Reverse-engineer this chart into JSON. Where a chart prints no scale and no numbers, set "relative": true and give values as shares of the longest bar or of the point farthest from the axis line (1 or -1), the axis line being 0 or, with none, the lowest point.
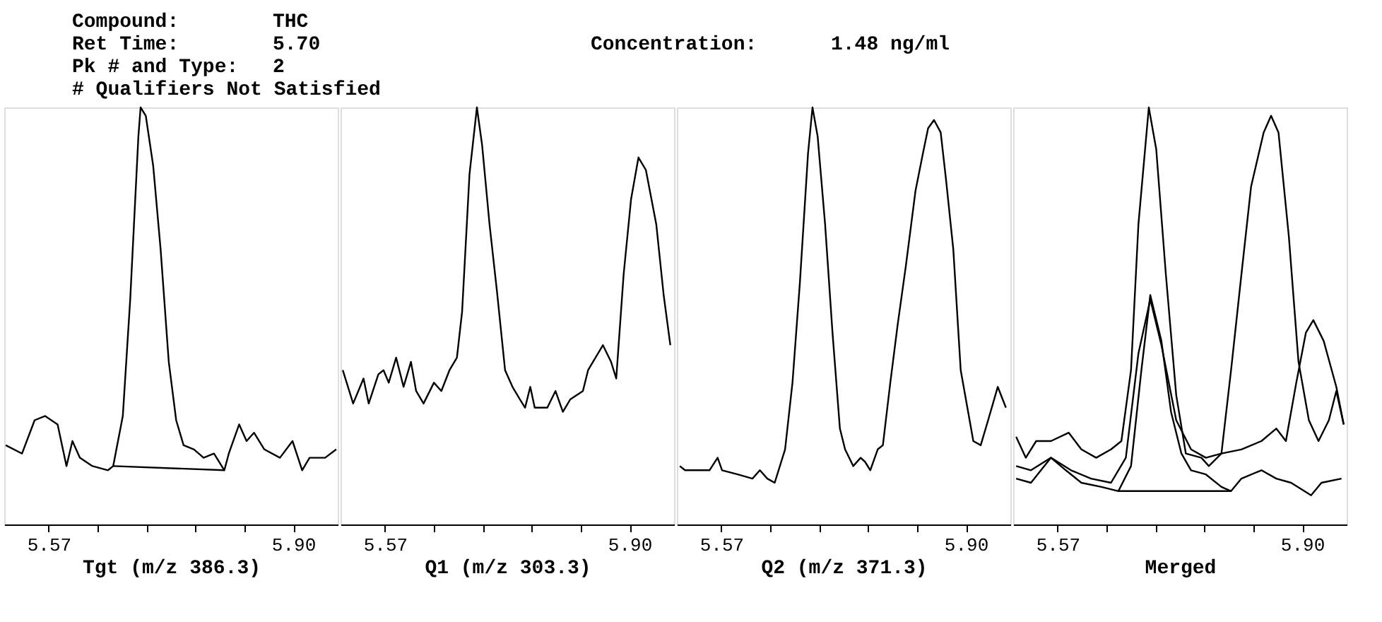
{
  "chart_data": [
    {
      "type": "line",
      "relative": true,
      "xlabel": "Tgt (m/z 386.3)",
      "xlim": [
        5.51,
        5.96
      ],
      "xticks": [
        {
          "value": 5.57,
          "label": "5.57"
        },
        {
          "value": 5.636,
          "label": null
        },
        {
          "value": 5.702,
          "label": null
        },
        {
          "value": 5.768,
          "label": null
        },
        {
          "value": 5.834,
          "label": null
        },
        {
          "value": 5.9,
          "label": "5.90"
        }
      ],
      "grid": false,
      "marker": "none",
      "line_style": "solid",
      "annotations": [
        "Compound:",
        "THC",
        "Ret Time:",
        "5.70",
        "Pk # and Type:",
        "2",
        "# Qualifiers Not Satisfied",
        "Concentration:",
        "1.48 ng/ml"
      ],
      "series": [
        {
          "color": "#000000",
          "x": [
            5.512,
            5.534,
            5.551,
            5.565,
            5.582,
            5.594,
            5.602,
            5.612,
            5.629,
            5.65,
            5.657,
            5.67,
            5.68,
            5.691,
            5.694,
            5.701,
            5.711,
            5.721,
            5.732,
            5.742,
            5.752,
            5.766,
            5.779,
            5.793,
            5.807,
            5.813,
            5.827,
            5.837,
            5.847,
            5.861,
            5.882,
            5.899,
            5.912,
            5.922,
            5.943,
            5.958
          ],
          "values": [
            0.19,
            0.17,
            0.25,
            0.26,
            0.24,
            0.14,
            0.2,
            0.16,
            0.14,
            0.13,
            0.14,
            0.26,
            0.54,
            0.93,
            1.0,
            0.98,
            0.86,
            0.66,
            0.39,
            0.25,
            0.19,
            0.18,
            0.16,
            0.17,
            0.13,
            0.17,
            0.24,
            0.2,
            0.22,
            0.18,
            0.16,
            0.2,
            0.13,
            0.16,
            0.16,
            0.18
          ]
        },
        {
          "color": "#000000",
          "x": [
            5.657,
            5.807
          ],
          "values": [
            0.14,
            0.13
          ]
        }
      ]
    },
    {
      "type": "line",
      "relative": true,
      "xlabel": "Q1 (m/z 303.3)",
      "xlim": [
        5.51,
        5.96
      ],
      "xticks": [
        {
          "value": 5.57,
          "label": "5.57"
        },
        {
          "value": 5.636,
          "label": null
        },
        {
          "value": 5.702,
          "label": null
        },
        {
          "value": 5.768,
          "label": null
        },
        {
          "value": 5.834,
          "label": null
        },
        {
          "value": 5.9,
          "label": "5.90"
        }
      ],
      "grid": false,
      "marker": "none",
      "line_style": "solid",
      "series": [
        {
          "color": "#000000",
          "x": [
            5.513,
            5.527,
            5.541,
            5.548,
            5.561,
            5.568,
            5.575,
            5.585,
            5.595,
            5.605,
            5.612,
            5.622,
            5.636,
            5.646,
            5.657,
            5.667,
            5.674,
            5.684,
            5.694,
            5.701,
            5.711,
            5.721,
            5.732,
            5.742,
            5.752,
            5.759,
            5.766,
            5.772,
            5.789,
            5.8,
            5.81,
            5.82,
            5.837,
            5.844,
            5.854,
            5.864,
            5.875,
            5.882,
            5.892,
            5.902,
            5.912,
            5.922,
            5.936,
            5.946,
            5.955
          ],
          "values": [
            0.37,
            0.29,
            0.35,
            0.29,
            0.36,
            0.37,
            0.34,
            0.4,
            0.33,
            0.39,
            0.32,
            0.29,
            0.34,
            0.32,
            0.37,
            0.4,
            0.51,
            0.84,
            1.0,
            0.91,
            0.72,
            0.56,
            0.37,
            0.33,
            0.3,
            0.28,
            0.33,
            0.28,
            0.28,
            0.32,
            0.27,
            0.3,
            0.32,
            0.37,
            0.4,
            0.43,
            0.39,
            0.35,
            0.6,
            0.78,
            0.88,
            0.85,
            0.72,
            0.55,
            0.43
          ]
        }
      ]
    },
    {
      "type": "line",
      "relative": true,
      "xlabel": "Q2 (m/z 371.3)",
      "xlim": [
        5.51,
        5.96
      ],
      "xticks": [
        {
          "value": 5.57,
          "label": "5.57"
        },
        {
          "value": 5.636,
          "label": null
        },
        {
          "value": 5.702,
          "label": null
        },
        {
          "value": 5.768,
          "label": null
        },
        {
          "value": 5.834,
          "label": null
        },
        {
          "value": 5.9,
          "label": "5.90"
        }
      ],
      "grid": false,
      "marker": "none",
      "line_style": "solid",
      "series": [
        {
          "color": "#000000",
          "x": [
            5.514,
            5.521,
            5.537,
            5.544,
            5.554,
            5.565,
            5.571,
            5.592,
            5.612,
            5.622,
            5.632,
            5.642,
            5.656,
            5.666,
            5.676,
            5.687,
            5.693,
            5.7,
            5.71,
            5.72,
            5.73,
            5.737,
            5.748,
            5.758,
            5.764,
            5.771,
            5.781,
            5.788,
            5.798,
            5.808,
            5.819,
            5.832,
            5.842,
            5.849,
            5.857,
            5.866,
            5.873,
            5.883,
            5.893,
            5.9,
            5.91,
            5.92,
            5.93,
            5.943,
            5.954
          ],
          "values": [
            0.14,
            0.13,
            0.13,
            0.13,
            0.13,
            0.16,
            0.13,
            0.12,
            0.11,
            0.13,
            0.11,
            0.1,
            0.18,
            0.34,
            0.58,
            0.89,
            1.0,
            0.93,
            0.72,
            0.46,
            0.23,
            0.18,
            0.14,
            0.16,
            0.15,
            0.13,
            0.18,
            0.19,
            0.34,
            0.48,
            0.62,
            0.8,
            0.89,
            0.95,
            0.97,
            0.94,
            0.83,
            0.66,
            0.37,
            0.3,
            0.2,
            0.19,
            0.25,
            0.33,
            0.28
          ]
        }
      ]
    },
    {
      "type": "line",
      "relative": true,
      "xlabel": "Merged",
      "xlim": [
        5.51,
        5.96
      ],
      "xticks": [
        {
          "value": 5.57,
          "label": "5.57"
        },
        {
          "value": 5.636,
          "label": null
        },
        {
          "value": 5.702,
          "label": null
        },
        {
          "value": 5.768,
          "label": null
        },
        {
          "value": 5.834,
          "label": null
        },
        {
          "value": 5.9,
          "label": "5.90"
        }
      ],
      "grid": false,
      "marker": "none",
      "line_style": "solid",
      "series": [
        {
          "color": "#000000",
          "x": [
            5.514,
            5.527,
            5.541,
            5.561,
            5.585,
            5.602,
            5.622,
            5.642,
            5.656,
            5.669,
            5.679,
            5.693,
            5.703,
            5.716,
            5.73,
            5.743,
            5.764,
            5.774,
            5.791,
            5.804,
            5.818,
            5.831,
            5.848,
            5.858,
            5.868,
            5.882,
            5.895,
            5.909,
            5.922,
            5.936,
            5.946,
            5.956
          ],
          "values": [
            0.21,
            0.16,
            0.2,
            0.2,
            0.22,
            0.18,
            0.16,
            0.18,
            0.2,
            0.37,
            0.72,
            1.0,
            0.9,
            0.6,
            0.31,
            0.17,
            0.16,
            0.14,
            0.17,
            0.37,
            0.6,
            0.81,
            0.94,
            0.98,
            0.94,
            0.69,
            0.39,
            0.25,
            0.2,
            0.25,
            0.32,
            0.24
          ]
        },
        {
          "color": "#000000",
          "x": [
            5.514,
            5.534,
            5.561,
            5.581,
            5.602,
            5.629,
            5.652,
            5.669,
            5.683,
            5.695,
            5.71,
            5.723,
            5.737,
            5.75,
            5.77,
            5.791,
            5.804,
            5.818,
            5.845,
            5.865,
            5.885,
            5.912,
            5.926,
            5.953
          ],
          "values": [
            0.11,
            0.1,
            0.16,
            0.13,
            0.1,
            0.09,
            0.08,
            0.14,
            0.37,
            0.55,
            0.44,
            0.27,
            0.17,
            0.13,
            0.12,
            0.09,
            0.08,
            0.11,
            0.13,
            0.11,
            0.1,
            0.07,
            0.1,
            0.11
          ]
        },
        {
          "color": "#000000",
          "x": [
            5.514,
            5.534,
            5.561,
            5.588,
            5.615,
            5.642,
            5.662,
            5.679,
            5.695,
            5.71,
            5.73,
            5.75,
            5.77,
            5.791,
            5.818,
            5.845,
            5.865,
            5.878,
            5.892,
            5.905,
            5.915,
            5.929,
            5.946,
            5.956
          ],
          "values": [
            0.14,
            0.13,
            0.16,
            0.13,
            0.11,
            0.1,
            0.16,
            0.41,
            0.54,
            0.43,
            0.25,
            0.18,
            0.16,
            0.17,
            0.18,
            0.2,
            0.23,
            0.2,
            0.34,
            0.46,
            0.49,
            0.44,
            0.33,
            0.24
          ]
        },
        {
          "color": "#000000",
          "x": [
            5.652,
            5.804
          ],
          "values": [
            0.08,
            0.08
          ]
        }
      ]
    }
  ]
}
